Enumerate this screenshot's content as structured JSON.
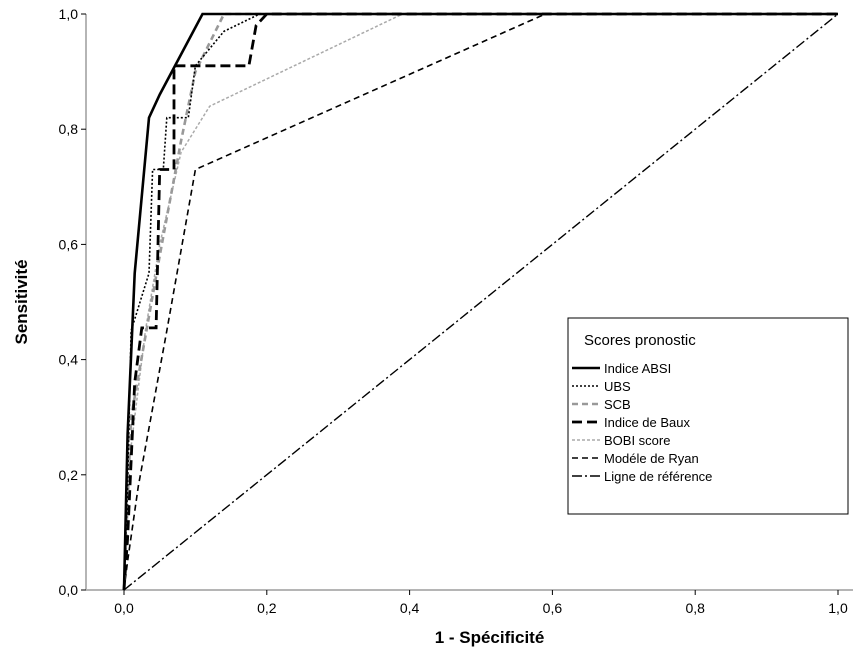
{
  "chart_data": {
    "type": "line",
    "xlabel": "1 - Spécificité",
    "ylabel": "Sensitivité",
    "xlim": [
      0,
      1
    ],
    "ylim": [
      0,
      1
    ],
    "x_ticks": [
      "0,0",
      "0,2",
      "0,4",
      "0,6",
      "0,8",
      "1,0"
    ],
    "y_ticks": [
      "0,0",
      "0,2",
      "0,4",
      "0,6",
      "0,8",
      "1,0"
    ],
    "legend_title": "Scores pronostic",
    "legend_position": "center-right",
    "grid": false,
    "series": [
      {
        "name": "Indice ABSI",
        "style": "solid-thick",
        "color": "#000000",
        "points": [
          [
            0,
            0
          ],
          [
            0.005,
            0.27
          ],
          [
            0.015,
            0.55
          ],
          [
            0.035,
            0.82
          ],
          [
            0.05,
            0.86
          ],
          [
            0.11,
            1.0
          ],
          [
            1.0,
            1.0
          ]
        ]
      },
      {
        "name": "UBS",
        "style": "dotted",
        "color": "#000000",
        "points": [
          [
            0,
            0
          ],
          [
            0.005,
            0.18
          ],
          [
            0.01,
            0.45
          ],
          [
            0.035,
            0.55
          ],
          [
            0.04,
            0.73
          ],
          [
            0.055,
            0.73
          ],
          [
            0.06,
            0.82
          ],
          [
            0.09,
            0.82
          ],
          [
            0.1,
            0.91
          ],
          [
            0.14,
            0.97
          ],
          [
            0.19,
            1.0
          ],
          [
            1.0,
            1.0
          ]
        ]
      },
      {
        "name": "SCB",
        "style": "dash-gray",
        "color": "#999999",
        "points": [
          [
            0,
            0
          ],
          [
            0.01,
            0.3
          ],
          [
            0.05,
            0.58
          ],
          [
            0.08,
            0.78
          ],
          [
            0.1,
            0.9
          ],
          [
            0.14,
            1.0
          ],
          [
            1.0,
            1.0
          ]
        ]
      },
      {
        "name": "Indice de Baux",
        "style": "long-dash-thick",
        "color": "#000000",
        "points": [
          [
            0,
            0
          ],
          [
            0.005,
            0.09
          ],
          [
            0.015,
            0.36
          ],
          [
            0.025,
            0.455
          ],
          [
            0.045,
            0.455
          ],
          [
            0.05,
            0.73
          ],
          [
            0.07,
            0.73
          ],
          [
            0.07,
            0.91
          ],
          [
            0.175,
            0.91
          ],
          [
            0.185,
            0.98
          ],
          [
            0.2,
            1.0
          ],
          [
            1.0,
            1.0
          ]
        ]
      },
      {
        "name": "BOBI score",
        "style": "fine-dash-gray",
        "color": "#aaaaaa",
        "points": [
          [
            0,
            0
          ],
          [
            0.005,
            0.2
          ],
          [
            0.03,
            0.45
          ],
          [
            0.05,
            0.6
          ],
          [
            0.08,
            0.76
          ],
          [
            0.12,
            0.84
          ],
          [
            0.39,
            1.0
          ],
          [
            1.0,
            1.0
          ]
        ]
      },
      {
        "name": "Modéle de Ryan",
        "style": "dashed",
        "color": "#000000",
        "points": [
          [
            0,
            0
          ],
          [
            0.005,
            0.05
          ],
          [
            0.02,
            0.18
          ],
          [
            0.06,
            0.45
          ],
          [
            0.1,
            0.73
          ],
          [
            0.59,
            1.0
          ],
          [
            1.0,
            1.0
          ]
        ]
      },
      {
        "name": "Ligne de référence",
        "style": "dash-dot",
        "color": "#000000",
        "points": [
          [
            0,
            0
          ],
          [
            1,
            1
          ]
        ]
      }
    ]
  }
}
